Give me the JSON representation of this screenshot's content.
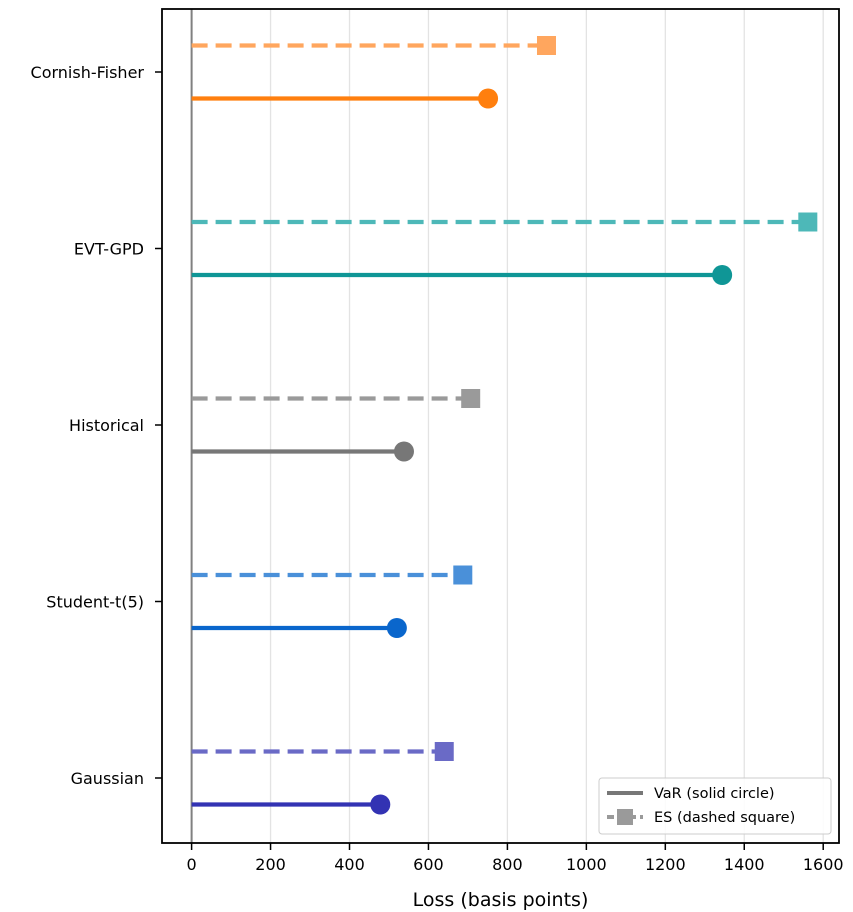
{
  "chart_data": {
    "type": "lollipop",
    "orientation": "horizontal",
    "categories": [
      "Gaussian",
      "Student-t(5)",
      "Historical",
      "EVT-GPD",
      "Cornish-Fisher"
    ],
    "series": [
      {
        "name": "VaR (solid circle)",
        "marker": "circle",
        "line": "solid",
        "values": [
          478,
          520,
          538,
          1344,
          751
        ]
      },
      {
        "name": "ES (dashed square)",
        "marker": "square",
        "line": "dashed",
        "values": [
          640,
          687,
          707,
          1561,
          899
        ]
      }
    ],
    "colors": {
      "Gaussian": {
        "var": "#3333b3",
        "es": "#6a6ac6"
      },
      "Student-t(5)": {
        "var": "#0a66cc",
        "es": "#4a90d9"
      },
      "Historical": {
        "var": "#777777",
        "es": "#9a9a9a"
      },
      "EVT-GPD": {
        "var": "#0f9696",
        "es": "#4db8b8"
      },
      "Cornish-Fisher": {
        "var": "#ff7f0e",
        "es": "#ffa65e"
      }
    },
    "xlabel": "Loss (basis points)",
    "ylabel": "",
    "xlim": [
      -75,
      1640
    ],
    "xticks": [
      0,
      200,
      400,
      600,
      800,
      1000,
      1200,
      1400,
      1600
    ],
    "grid": "vertical",
    "legend_position": "lower-right"
  }
}
